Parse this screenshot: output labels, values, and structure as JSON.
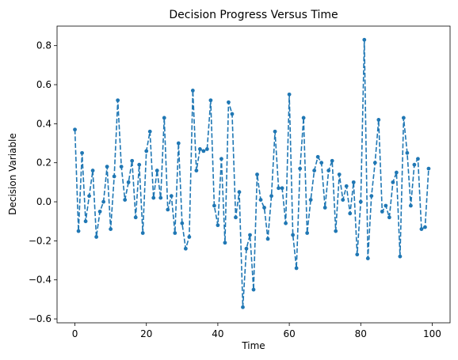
{
  "chart_data": {
    "type": "line",
    "title": "Decision Progress Versus Time",
    "xlabel": "Time",
    "ylabel": "Decision Variable",
    "xlim": [
      -5,
      105
    ],
    "ylim": [
      -0.62,
      0.9
    ],
    "xticks": [
      0,
      20,
      40,
      60,
      80,
      100
    ],
    "yticks": [
      -0.6,
      -0.4,
      -0.2,
      0.0,
      0.2,
      0.4,
      0.6,
      0.8
    ],
    "grid": false,
    "legend": "none",
    "series": [
      {
        "color": "#1f77b4",
        "line_style": "dashed",
        "marker": "circle",
        "x": [
          0,
          1,
          2,
          3,
          4,
          5,
          6,
          7,
          8,
          9,
          10,
          11,
          12,
          13,
          14,
          15,
          16,
          17,
          18,
          19,
          20,
          21,
          22,
          23,
          24,
          25,
          26,
          27,
          28,
          29,
          30,
          31,
          32,
          33,
          34,
          35,
          36,
          37,
          38,
          39,
          40,
          41,
          42,
          43,
          44,
          45,
          46,
          47,
          48,
          49,
          50,
          51,
          52,
          53,
          54,
          55,
          56,
          57,
          58,
          59,
          60,
          61,
          62,
          63,
          64,
          65,
          66,
          67,
          68,
          69,
          70,
          71,
          72,
          73,
          74,
          75,
          76,
          77,
          78,
          79,
          80,
          81,
          82,
          83,
          84,
          85,
          86,
          87,
          88,
          89,
          90,
          91,
          92,
          93,
          94,
          95,
          96,
          97,
          98,
          99
        ],
        "y": [
          0.37,
          -0.15,
          0.25,
          -0.1,
          0.03,
          0.16,
          -0.18,
          -0.05,
          0.0,
          0.18,
          -0.14,
          0.13,
          0.52,
          0.18,
          0.01,
          0.1,
          0.21,
          -0.08,
          0.19,
          -0.16,
          0.26,
          0.36,
          0.02,
          0.16,
          0.02,
          0.43,
          -0.04,
          0.03,
          -0.16,
          0.3,
          -0.11,
          -0.24,
          -0.18,
          0.57,
          0.16,
          0.27,
          0.26,
          0.27,
          0.52,
          -0.02,
          -0.12,
          0.22,
          -0.21,
          0.51,
          0.45,
          -0.08,
          0.05,
          -0.54,
          -0.24,
          -0.17,
          -0.45,
          0.14,
          0.01,
          -0.03,
          -0.19,
          0.03,
          0.36,
          0.07,
          0.07,
          -0.11,
          0.55,
          -0.17,
          -0.34,
          0.17,
          0.43,
          -0.16,
          0.01,
          0.16,
          0.23,
          0.2,
          -0.03,
          0.16,
          0.21,
          -0.15,
          0.14,
          0.01,
          0.08,
          -0.06,
          0.1,
          -0.27,
          0.0,
          0.83,
          -0.29,
          0.03,
          0.2,
          0.42,
          -0.05,
          -0.02,
          -0.08,
          0.1,
          0.15,
          -0.28,
          0.43,
          0.25,
          -0.02,
          0.19,
          0.22,
          -0.14,
          -0.13,
          0.17
        ]
      }
    ]
  }
}
